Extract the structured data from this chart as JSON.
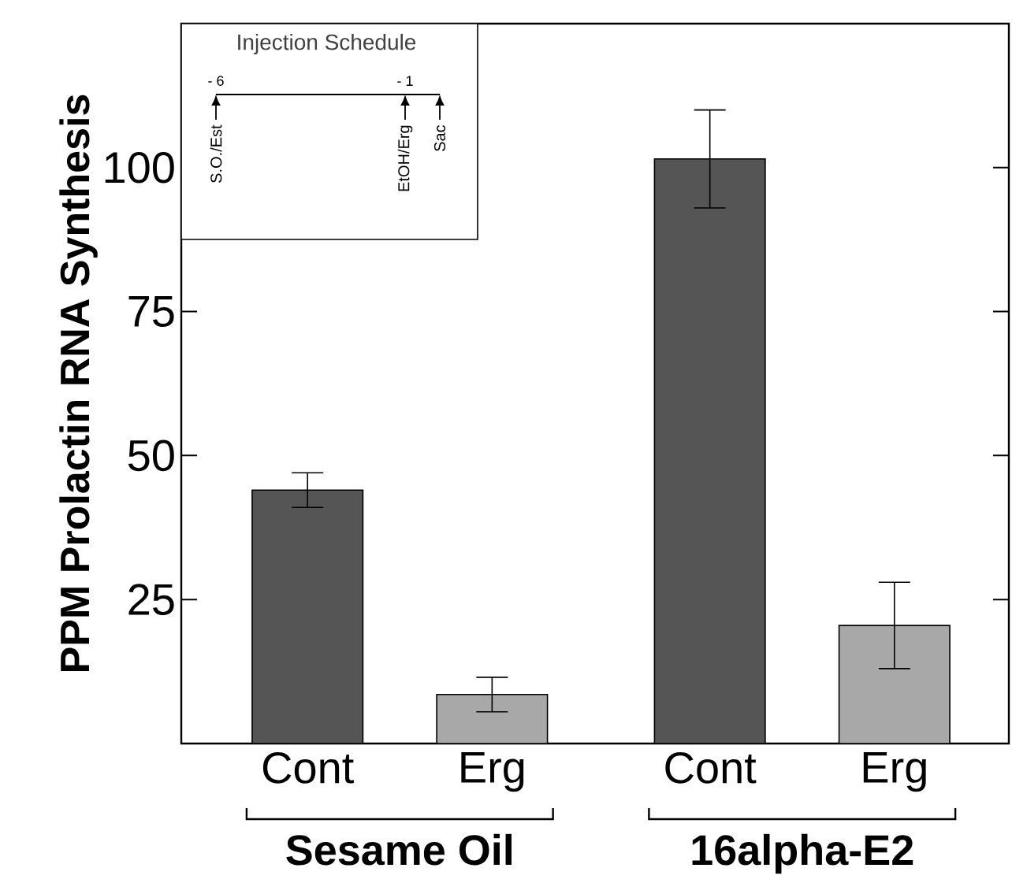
{
  "chart_data": {
    "type": "bar",
    "ylabel": "PPM Prolactin RNA Synthesis",
    "categories": [
      "Cont",
      "Erg",
      "Cont",
      "Erg"
    ],
    "values": [
      44,
      8.5,
      101.5,
      20.5
    ],
    "errors": [
      3,
      3,
      8.5,
      7.5
    ],
    "colors": [
      "#555555",
      "#a8a8a8",
      "#555555",
      "#a8a8a8"
    ],
    "ylim": [
      0,
      125
    ],
    "yticks": [
      25,
      50,
      75,
      100
    ],
    "annotations": [
      "Injection Schedule",
      "- 6",
      "- 1",
      "S.O./Est",
      "EtOH/Erg",
      "Sac",
      "Sesame Oil",
      "16alpha-E2"
    ]
  }
}
